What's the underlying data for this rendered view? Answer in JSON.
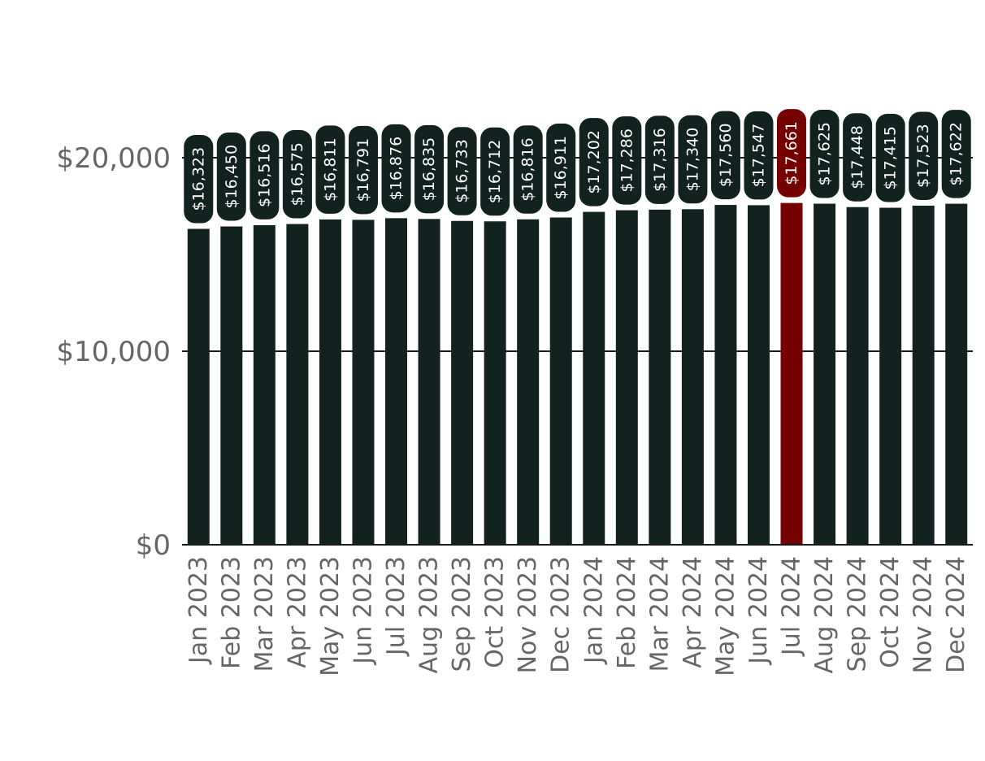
{
  "chart_data": {
    "type": "bar",
    "title": "",
    "xlabel": "",
    "ylabel": "",
    "ylim": [
      0,
      22000
    ],
    "yticks": [
      0,
      10000,
      20000
    ],
    "ytick_labels": [
      "$0",
      "$10,000",
      "$20,000"
    ],
    "grid": "horizontal",
    "categories": [
      "Jan 2023",
      "Feb 2023",
      "Mar 2023",
      "Apr 2023",
      "May 2023",
      "Jun 2023",
      "Jul 2023",
      "Aug 2023",
      "Sep 2023",
      "Oct 2023",
      "Nov 2023",
      "Dec 2023",
      "Jan 2024",
      "Feb 2024",
      "Mar 2024",
      "Apr 2024",
      "May 2024",
      "Jun 2024",
      "Jul 2024",
      "Aug 2024",
      "Sep 2024",
      "Oct 2024",
      "Nov 2024",
      "Dec 2024"
    ],
    "values": [
      16323,
      16450,
      16516,
      16575,
      16811,
      16791,
      16876,
      16835,
      16733,
      16712,
      16816,
      16911,
      17202,
      17286,
      17316,
      17340,
      17560,
      17547,
      17661,
      17625,
      17448,
      17415,
      17523,
      17622
    ],
    "value_labels": [
      "$16,323",
      "$16,450",
      "$16,516",
      "$16,575",
      "$16,811",
      "$16,791",
      "$16,876",
      "$16,835",
      "$16,733",
      "$16,712",
      "$16,816",
      "$16,911",
      "$17,202",
      "$17,286",
      "$17,316",
      "$17,340",
      "$17,560",
      "$17,547",
      "$17,661",
      "$17,625",
      "$17,448",
      "$17,415",
      "$17,523",
      "$17,622"
    ],
    "highlight_index": 18,
    "colors": {
      "bar": "#12221f",
      "highlight": "#750000",
      "grid": "#1a1a1a",
      "tick_text": "#666666",
      "label_text": "#ffffff"
    }
  }
}
